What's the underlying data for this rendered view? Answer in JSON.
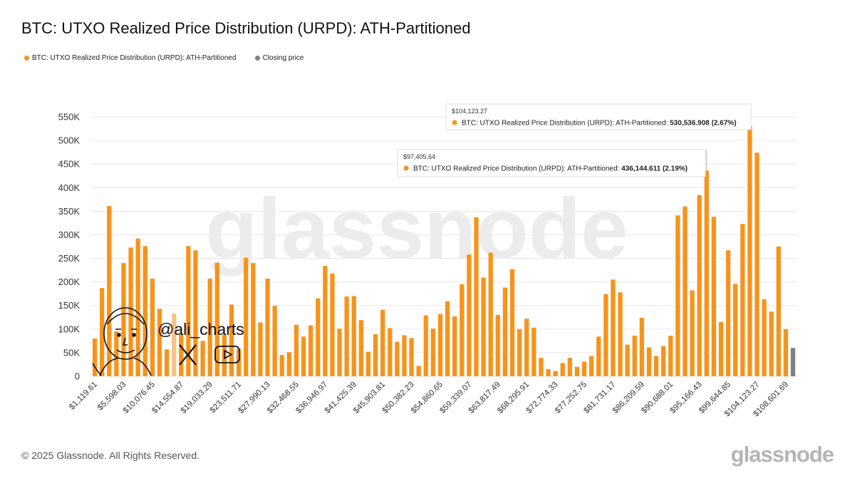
{
  "header": {
    "title": "BTC: UTXO Realized Price Distribution (URPD): ATH-Partitioned"
  },
  "legend": {
    "series_label": "BTC: UTXO Realized Price Distribution (URPD): ATH-Partitioned",
    "closing_label": "Closing price"
  },
  "watermark": "glassnode",
  "overlay": {
    "handle": "@ali_charts"
  },
  "footer": {
    "copyright": "© 2025 Glassnode. All Rights Reserved.",
    "logo": "glassnode"
  },
  "colors": {
    "series": "#f7931a",
    "closing": "#808080",
    "highlight": "#f5c38a"
  },
  "tooltips": [
    {
      "price": "$104,123.27",
      "text": "BTC: UTXO Realized Price Distribution (URPD): ATH-Partitioned: ",
      "value": "530,536.908 (2.67%)"
    },
    {
      "price": "$97,405.64",
      "text": "BTC: UTXO Realized Price Distribution (URPD): ATH-Partitioned: ",
      "value": "436,144.611 (2.19%)"
    }
  ],
  "chart_data": {
    "type": "bar",
    "title": "BTC: UTXO Realized Price Distribution (URPD): ATH-Partitioned",
    "ylim": [
      0,
      550000
    ],
    "y_ticks": [
      "0",
      "50K",
      "100K",
      "150K",
      "200K",
      "250K",
      "300K",
      "350K",
      "400K",
      "450K",
      "500K",
      "550K"
    ],
    "x_tick_labels": [
      "$1,119.61",
      "$5,598.03",
      "$10,076.45",
      "$14,554.87",
      "$19,033.29",
      "$23,511.71",
      "$27,990.13",
      "$32,468.55",
      "$36,946.97",
      "$41,425.39",
      "$45,903.81",
      "$50,382.23",
      "$54,860.65",
      "$59,339.07",
      "$63,817.49",
      "$68,295.91",
      "$72,774.33",
      "$77,252.75",
      "$81,731.17",
      "$86,209.59",
      "$90,688.01",
      "$95,166.43",
      "$99,644.85",
      "$104,123.27",
      "$108,601.69"
    ],
    "grid": true,
    "legend_position": "top-left",
    "closing_price_index": 97,
    "highlight_index": 11,
    "series": [
      {
        "name": "BTC: UTXO Realized Price Distribution (URPD): ATH-Partitioned",
        "values": [
          80000,
          187000,
          361000,
          95000,
          240000,
          273000,
          292000,
          276000,
          207000,
          143000,
          57000,
          133000,
          90000,
          276000,
          267000,
          75000,
          207000,
          241000,
          88000,
          152000,
          58000,
          251000,
          240000,
          114000,
          207000,
          149000,
          45000,
          51000,
          109000,
          84000,
          108000,
          165000,
          234000,
          218000,
          101000,
          169000,
          170000,
          119000,
          52000,
          89000,
          141000,
          102000,
          73000,
          87000,
          81000,
          22000,
          129000,
          101000,
          132000,
          159000,
          127000,
          195000,
          258000,
          337000,
          209000,
          262000,
          130000,
          188000,
          227000,
          100000,
          122000,
          103000,
          39000,
          15000,
          11000,
          28000,
          39000,
          20000,
          31000,
          43000,
          84000,
          174000,
          205000,
          178000,
          67000,
          86000,
          124000,
          61000,
          43000,
          64000,
          86000,
          341000,
          360000,
          182000,
          384000,
          436145,
          338000,
          115000,
          267000,
          196000,
          323000,
          530537,
          474000,
          163000,
          137000,
          275000,
          100000,
          60000
        ]
      }
    ]
  }
}
